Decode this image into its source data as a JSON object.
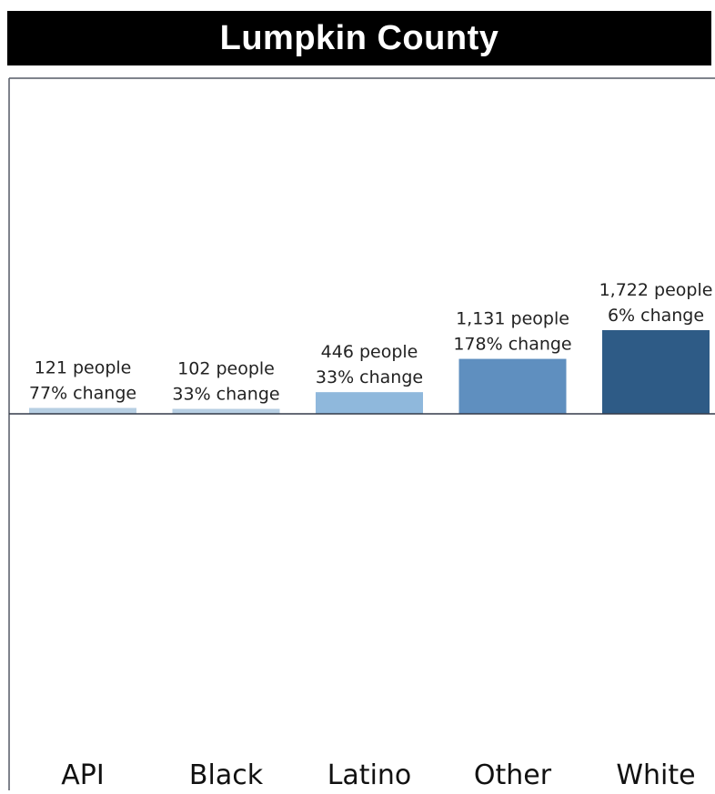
{
  "title": "Lumpkin County",
  "chart_data": {
    "type": "bar",
    "title": "Lumpkin County",
    "categories": [
      "API",
      "Black",
      "Latino",
      "Other",
      "White"
    ],
    "values": [
      121,
      102,
      446,
      1131,
      1722
    ],
    "value_labels": [
      "121 people",
      "102 people",
      "446 people",
      "1,131 people",
      "1,722 people"
    ],
    "change_labels": [
      "77% change",
      "33% change",
      "33% change",
      "178% change",
      "6% change"
    ],
    "colors": [
      "#b7cfe3",
      "#b7cfe3",
      "#8fb8dc",
      "#5f8fbf",
      "#2e5b86"
    ],
    "ylim": [
      0,
      5000
    ],
    "grid": false,
    "legend": "none"
  }
}
